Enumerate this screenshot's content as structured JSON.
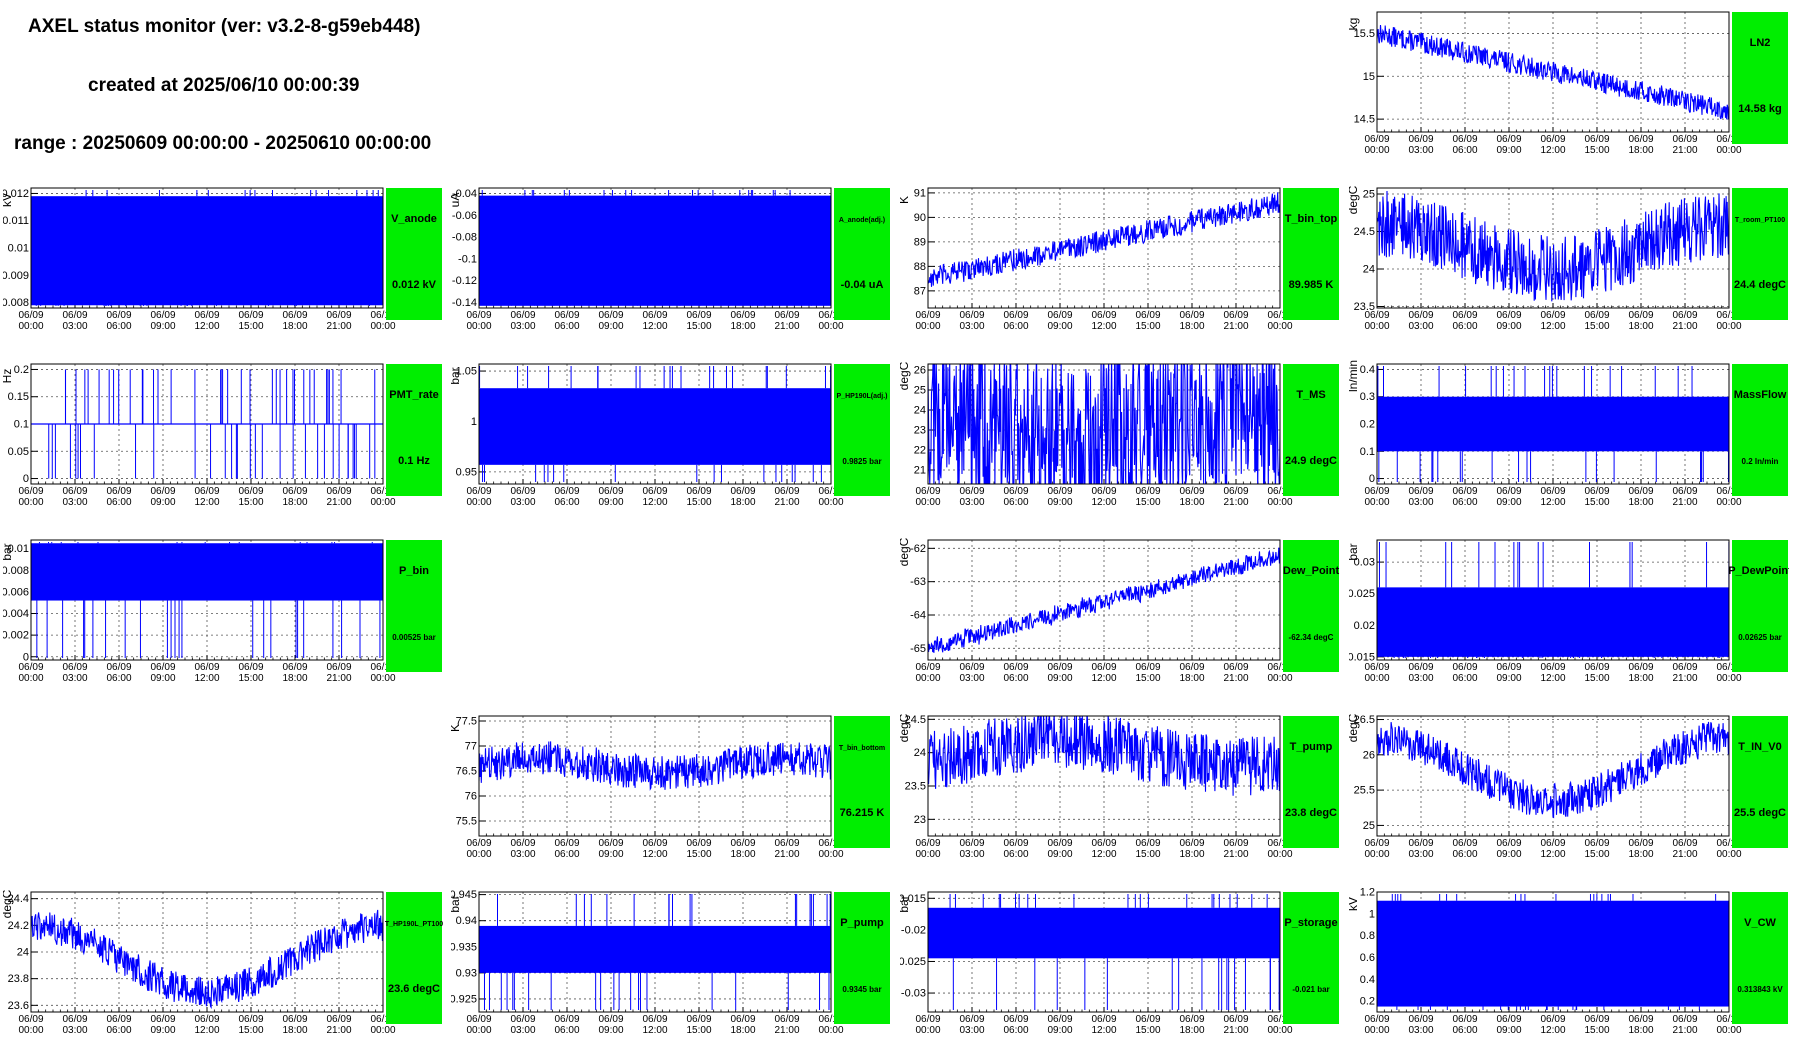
{
  "header": {
    "title": "AXEL status monitor (ver: v3.2-8-g59eb448)",
    "created": "created at 2025/06/10 00:00:39",
    "range": "range : 20250609 00:00:00 - 20250610 00:00:00"
  },
  "colors": {
    "trace": "#0000ff",
    "label_box": "#00ee00",
    "grid": "#555555"
  },
  "x_axis": {
    "ticks": [
      [
        "06/09",
        "00:00"
      ],
      [
        "06/09",
        "03:00"
      ],
      [
        "06/09",
        "06:00"
      ],
      [
        "06/09",
        "09:00"
      ],
      [
        "06/09",
        "12:00"
      ],
      [
        "06/09",
        "15:00"
      ],
      [
        "06/09",
        "18:00"
      ],
      [
        "06/09",
        "21:00"
      ],
      [
        "06/10",
        "00:00"
      ]
    ]
  },
  "chart_data": [
    {
      "type": "line",
      "row": 0,
      "col": 3,
      "name": "LN2",
      "value": "14.58 kg",
      "unit": "kg",
      "ylim": [
        14.35,
        15.75
      ],
      "yticks": [
        "14.5",
        "15",
        "15.5"
      ],
      "ytick_vals": [
        14.5,
        15,
        15.5
      ],
      "pattern": "band_trend",
      "y_start": 15.5,
      "y_end": 14.6,
      "band_width": 0.12
    },
    {
      "type": "line",
      "row": 1,
      "col": 0,
      "name": "V_anode",
      "value": "0.012 kV",
      "unit": "kV",
      "ylim": [
        0.0078,
        0.0122
      ],
      "yticks": [
        "0.008",
        "0.009",
        "0.01",
        "0.011",
        "0.012"
      ],
      "ytick_vals": [
        0.008,
        0.009,
        0.01,
        0.011,
        0.012
      ],
      "pattern": "fill",
      "fill_lo": 0.0079,
      "fill_hi": 0.0119
    },
    {
      "type": "line",
      "row": 1,
      "col": 1,
      "name": "A_anode(adj.)",
      "value": "-0.04 uA",
      "unit": "uA",
      "ylim": [
        -0.145,
        -0.035
      ],
      "yticks": [
        "-0.14",
        "-0.12",
        "-0.1",
        "-0.08",
        "-0.06",
        "-0.04"
      ],
      "ytick_vals": [
        -0.14,
        -0.12,
        -0.1,
        -0.08,
        -0.06,
        -0.04
      ],
      "pattern": "fill",
      "fill_lo": -0.143,
      "fill_hi": -0.042
    },
    {
      "type": "line",
      "row": 1,
      "col": 2,
      "name": "T_bin_top",
      "value": "89.985 K",
      "unit": "K",
      "ylim": [
        86.3,
        91.2
      ],
      "yticks": [
        "87",
        "88",
        "89",
        "90",
        "91"
      ],
      "ytick_vals": [
        87,
        88,
        89,
        90,
        91
      ],
      "pattern": "noisy_trend",
      "y_start": 87.5,
      "y_end": 90.6,
      "noise": 0.45
    },
    {
      "type": "line",
      "row": 1,
      "col": 3,
      "name": "T_room_PT100",
      "value": "24.4 degC",
      "unit": "degC",
      "ylim": [
        23.48,
        25.08
      ],
      "yticks": [
        "23.5",
        "24",
        "24.5",
        "25"
      ],
      "ytick_vals": [
        23.5,
        24,
        24.5,
        25
      ],
      "pattern": "wave_band",
      "mid": 24.3,
      "amp": 0.3,
      "band_width": 0.45,
      "phase": 3.14
    },
    {
      "type": "line",
      "row": 2,
      "col": 0,
      "name": "PMT_rate",
      "value": "0.1 Hz",
      "unit": "Hz",
      "ylim": [
        -0.01,
        0.21
      ],
      "yticks": [
        "0",
        "0.05",
        "0.1",
        "0.15",
        "0.2"
      ],
      "ytick_vals": [
        0,
        0.05,
        0.1,
        0.15,
        0.2
      ],
      "pattern": "discrete_spikes",
      "base": 0.1,
      "up": 0.2,
      "down": 0.0,
      "n_spikes": 70
    },
    {
      "type": "line",
      "row": 2,
      "col": 1,
      "name": "P_HP190L(adj.)",
      "value": "0.9825 bar",
      "unit": "bar",
      "ylim": [
        0.938,
        1.057
      ],
      "yticks": [
        "0.95",
        "1",
        "1.05"
      ],
      "ytick_vals": [
        0.95,
        1,
        1.05
      ],
      "pattern": "fill",
      "fill_lo": 0.957,
      "fill_hi": 1.033
    },
    {
      "type": "line",
      "row": 2,
      "col": 2,
      "name": "T_MS",
      "value": "24.9 degC",
      "unit": "degC",
      "ylim": [
        20.3,
        26.3
      ],
      "yticks": [
        "21",
        "22",
        "23",
        "24",
        "25",
        "26"
      ],
      "ytick_vals": [
        21,
        22,
        23,
        24,
        25,
        26
      ],
      "pattern": "wave_band",
      "mid": 23.3,
      "amp": 0.6,
      "band_width": 4.2,
      "phase": 3.6
    },
    {
      "type": "line",
      "row": 2,
      "col": 3,
      "name": "MassFlow",
      "value": "0.2 ln/min",
      "unit": "ln/min",
      "ylim": [
        -0.02,
        0.42
      ],
      "yticks": [
        "0",
        "0.1",
        "0.2",
        "0.3",
        "0.4"
      ],
      "ytick_vals": [
        0,
        0.1,
        0.2,
        0.3,
        0.4
      ],
      "pattern": "fill",
      "fill_lo": 0.1,
      "fill_hi": 0.3
    },
    {
      "type": "line",
      "row": 3,
      "col": 0,
      "name": "P_bin",
      "value": "0.00525 bar",
      "unit": "bar",
      "ylim": [
        -0.0003,
        0.0108
      ],
      "yticks": [
        "0",
        "0.002",
        "0.004",
        "0.006",
        "0.008",
        "0.01"
      ],
      "ytick_vals": [
        0,
        0.002,
        0.004,
        0.006,
        0.008,
        0.01
      ],
      "pattern": "fill",
      "fill_lo": 0.0052,
      "fill_hi": 0.0105
    },
    {
      "type": "line",
      "row": 3,
      "col": 2,
      "name": "Dew_Point",
      "value": "-62.34 degC",
      "unit": "degC",
      "ylim": [
        -65.35,
        -61.75
      ],
      "yticks": [
        "-65",
        "-64",
        "-63",
        "-62"
      ],
      "ytick_vals": [
        -65,
        -64,
        -63,
        -62
      ],
      "pattern": "step_trend",
      "y_start": -65.0,
      "y_end": -62.2,
      "band_width": 0.25
    },
    {
      "type": "line",
      "row": 3,
      "col": 3,
      "name": "P_DewPoint",
      "value": "0.02625 bar",
      "unit": "bar",
      "ylim": [
        0.0145,
        0.0335
      ],
      "yticks": [
        "0.015",
        "0.02",
        "0.025",
        "0.03"
      ],
      "ytick_vals": [
        0.015,
        0.02,
        0.025,
        0.03
      ],
      "pattern": "fill",
      "fill_lo": 0.015,
      "fill_hi": 0.026
    },
    {
      "type": "line",
      "row": 4,
      "col": 1,
      "name": "T_bin_bottom",
      "value": "76.215 K",
      "unit": "K",
      "ylim": [
        75.2,
        77.6
      ],
      "yticks": [
        "75.5",
        "76",
        "76.5",
        "77",
        "77.5"
      ],
      "ytick_vals": [
        75.5,
        76,
        76.5,
        77,
        77.5
      ],
      "pattern": "noisy_flat",
      "mid": 76.6,
      "noise": 0.35
    },
    {
      "type": "line",
      "row": 4,
      "col": 2,
      "name": "T_pump",
      "value": "23.8 degC",
      "unit": "degC",
      "ylim": [
        22.75,
        24.55
      ],
      "yticks": [
        "23",
        "23.5",
        "24",
        "24.5"
      ],
      "ytick_vals": [
        23,
        23.5,
        24,
        24.5
      ],
      "pattern": "wave_band",
      "mid": 24.0,
      "amp": 0.2,
      "band_width": 0.45,
      "phase": 0.8
    },
    {
      "type": "line",
      "row": 4,
      "col": 3,
      "name": "T_IN_V0",
      "value": "25.5 degC",
      "unit": "degC",
      "ylim": [
        24.85,
        26.55
      ],
      "yticks": [
        "25",
        "25.5",
        "26",
        "26.5"
      ],
      "ytick_vals": [
        25,
        25.5,
        26,
        26.5
      ],
      "pattern": "wave_band",
      "mid": 25.8,
      "amp": 0.45,
      "band_width": 0.25,
      "phase": 3.14
    },
    {
      "type": "line",
      "row": 5,
      "col": 0,
      "name": "T_HP190L_PT100",
      "value": "23.6 degC",
      "unit": "degC",
      "ylim": [
        23.55,
        24.45
      ],
      "yticks": [
        "23.6",
        "23.8",
        "24",
        "24.2",
        "24.4"
      ],
      "ytick_vals": [
        23.6,
        23.8,
        24,
        24.2,
        24.4
      ],
      "pattern": "wave_band",
      "mid": 23.95,
      "amp": 0.25,
      "band_width": 0.12,
      "phase": 3.14
    },
    {
      "type": "line",
      "row": 5,
      "col": 1,
      "name": "P_pump",
      "value": "0.9345 bar",
      "unit": "bar",
      "ylim": [
        0.9225,
        0.9455
      ],
      "yticks": [
        "0.925",
        "0.93",
        "0.935",
        "0.94",
        "0.945"
      ],
      "ytick_vals": [
        0.925,
        0.93,
        0.935,
        0.94,
        0.945
      ],
      "pattern": "fill",
      "fill_lo": 0.93,
      "fill_hi": 0.939
    },
    {
      "type": "line",
      "row": 5,
      "col": 2,
      "name": "P_storage",
      "value": "-0.021 bar",
      "unit": "bar",
      "ylim": [
        -0.033,
        -0.014
      ],
      "yticks": [
        "-0.03",
        "-0.025",
        "-0.02",
        "-0.015"
      ],
      "ytick_vals": [
        -0.03,
        -0.025,
        -0.02,
        -0.015
      ],
      "pattern": "fill",
      "fill_lo": -0.0245,
      "fill_hi": -0.0165
    },
    {
      "type": "line",
      "row": 5,
      "col": 3,
      "name": "V_CW",
      "value": "0.313843 kV",
      "unit": "kV",
      "ylim": [
        0.1,
        1.2
      ],
      "yticks": [
        "0.2",
        "0.4",
        "0.6",
        "0.8",
        "1",
        "1.2"
      ],
      "ytick_vals": [
        0.2,
        0.4,
        0.6,
        0.8,
        1,
        1.2
      ],
      "pattern": "fill",
      "fill_lo": 0.15,
      "fill_hi": 1.12
    }
  ]
}
